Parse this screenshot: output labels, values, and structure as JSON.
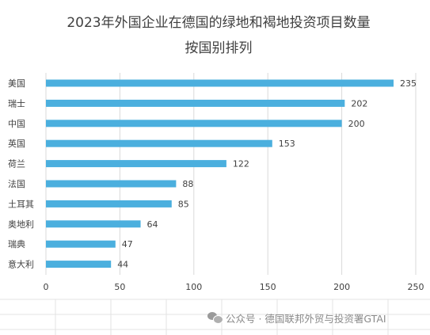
{
  "chart_data": {
    "type": "bar",
    "orientation": "horizontal",
    "title_lines": [
      "2023年外国企业在德国的绿地和褐地投资项目数量",
      "按国别排列"
    ],
    "categories": [
      "美国",
      "瑞士",
      "中国",
      "英国",
      "荷兰",
      "法国",
      "土耳其",
      "奥地利",
      "瑞典",
      "意大利"
    ],
    "values": [
      235,
      202,
      200,
      153,
      122,
      88,
      85,
      64,
      47,
      44
    ],
    "xlim": [
      0,
      250
    ],
    "xticks": [
      "0",
      "50",
      "100",
      "150",
      "200",
      "250"
    ],
    "grid": true,
    "legend": "none",
    "data_labels": true,
    "bar_color": "#4bafde"
  },
  "watermark": {
    "icon": "wechat-icon",
    "text": "公众号 · 德国联邦外贸与投资署GTAI"
  }
}
